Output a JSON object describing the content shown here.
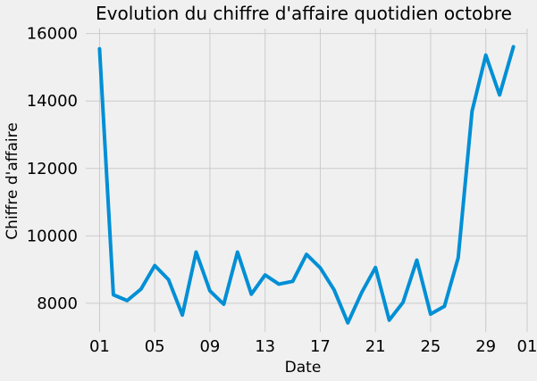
{
  "chart_data": {
    "type": "line",
    "title": "Evolution du chiffre d'affaire quotidien octobre",
    "xlabel": "Date",
    "ylabel": "Chiffre d'affaire",
    "x": [
      "2022-10-01",
      "2022-10-02",
      "2022-10-03",
      "2022-10-04",
      "2022-10-05",
      "2022-10-06",
      "2022-10-07",
      "2022-10-08",
      "2022-10-09",
      "2022-10-10",
      "2022-10-11",
      "2022-10-12",
      "2022-10-13",
      "2022-10-14",
      "2022-10-15",
      "2022-10-16",
      "2022-10-17",
      "2022-10-18",
      "2022-10-19",
      "2022-10-20",
      "2022-10-21",
      "2022-10-22",
      "2022-10-23",
      "2022-10-24",
      "2022-10-25",
      "2022-10-26",
      "2022-10-27",
      "2022-10-28",
      "2022-10-29",
      "2022-10-30",
      "2022-10-31"
    ],
    "x_tick_values": [
      "2022-10-01",
      "2022-10-05",
      "2022-10-09",
      "2022-10-13",
      "2022-10-17",
      "2022-10-21",
      "2022-10-25",
      "2022-10-29",
      "2022-11-01"
    ],
    "x_tick_labels": [
      "01",
      "05",
      "09",
      "13",
      "17",
      "21",
      "25",
      "29",
      "01"
    ],
    "xlim": [
      "2022-09-30",
      "2022-11-01"
    ],
    "series": [
      {
        "values": [
          15550,
          8250,
          8080,
          8420,
          9120,
          8700,
          7650,
          9520,
          8370,
          7970,
          9520,
          8270,
          8840,
          8570,
          8650,
          9450,
          9050,
          8400,
          7420,
          8320,
          9060,
          7500,
          8030,
          9280,
          7680,
          7910,
          9350,
          13700,
          15360,
          14180,
          15610
        ],
        "color": "#008fd5"
      }
    ],
    "y_ticks": [
      8000,
      10000,
      12000,
      14000,
      16000
    ],
    "ylim": [
      7150,
      16150
    ],
    "grid": true
  }
}
